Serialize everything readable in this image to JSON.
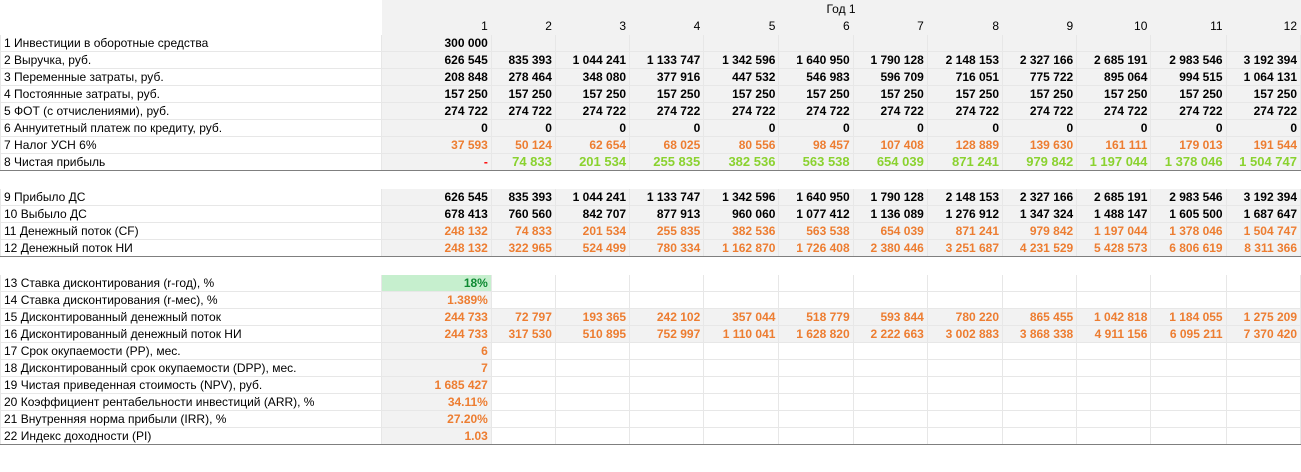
{
  "header": {
    "year_label": "Год 1",
    "months": [
      "1",
      "2",
      "3",
      "4",
      "5",
      "6",
      "7",
      "8",
      "9",
      "10",
      "11",
      "12"
    ]
  },
  "rows": [
    {
      "n": "1",
      "label": "Инвестиции в оборотные средства",
      "values": [
        "300 000",
        "",
        "",
        "",
        "",
        "",
        "",
        "",
        "",
        "",
        "",
        ""
      ],
      "style": "bold"
    },
    {
      "n": "2",
      "label": "Выручка, руб.",
      "values": [
        "626 545",
        "835 393",
        "1 044 241",
        "1 133 747",
        "1 342 596",
        "1 640 950",
        "1 790 128",
        "2 148 153",
        "2 327 166",
        "2 685 191",
        "2 983 546",
        "3 192 394"
      ],
      "style": "bold"
    },
    {
      "n": "3",
      "label": "Переменные затраты, руб.",
      "values": [
        "208 848",
        "278 464",
        "348 080",
        "377 916",
        "447 532",
        "546 983",
        "596 709",
        "716 051",
        "775 722",
        "895 064",
        "994 515",
        "1 064 131"
      ],
      "style": "bold"
    },
    {
      "n": "4",
      "label": "Постоянные затраты, руб.",
      "values": [
        "157 250",
        "157 250",
        "157 250",
        "157 250",
        "157 250",
        "157 250",
        "157 250",
        "157 250",
        "157 250",
        "157 250",
        "157 250",
        "157 250"
      ],
      "style": "bold"
    },
    {
      "n": "5",
      "label": "ФОТ (с отчислениями), руб.",
      "values": [
        "274 722",
        "274 722",
        "274 722",
        "274 722",
        "274 722",
        "274 722",
        "274 722",
        "274 722",
        "274 722",
        "274 722",
        "274 722",
        "274 722"
      ],
      "style": "bold"
    },
    {
      "n": "6",
      "label": "Аннуитетный платеж по кредиту, руб.",
      "values": [
        "0",
        "0",
        "0",
        "0",
        "0",
        "0",
        "0",
        "0",
        "0",
        "0",
        "0",
        "0"
      ],
      "style": "bold"
    },
    {
      "n": "7",
      "label": "Налог УСН 6%",
      "values": [
        "37 593",
        "50 124",
        "62 654",
        "68 025",
        "80 556",
        "98 457",
        "107 408",
        "128 889",
        "139 630",
        "161 111",
        "179 013",
        "191 544"
      ],
      "style": "orange"
    },
    {
      "n": "8",
      "label": "Чистая прибыль",
      "values": [
        "-",
        "74 833",
        "201 534",
        "255 835",
        "382 536",
        "563 538",
        "654 039",
        "871 241",
        "979 842",
        "1 197 044",
        "1 378 046",
        "1 504 747"
      ],
      "style": "green",
      "first_style": "red"
    },
    {
      "n": "9",
      "label": "Прибыло ДС",
      "values": [
        "626 545",
        "835 393",
        "1 044 241",
        "1 133 747",
        "1 342 596",
        "1 640 950",
        "1 790 128",
        "2 148 153",
        "2 327 166",
        "2 685 191",
        "2 983 546",
        "3 192 394"
      ],
      "style": "bold"
    },
    {
      "n": "10",
      "label": "Выбыло ДС",
      "values": [
        "678 413",
        "760 560",
        "842 707",
        "877 913",
        "960 060",
        "1 077 412",
        "1 136 089",
        "1 276 912",
        "1 347 324",
        "1 488 147",
        "1 605 500",
        "1 687 647"
      ],
      "style": "bold"
    },
    {
      "n": "11",
      "label": "Денежный поток (CF)",
      "values": [
        "248 132",
        "74 833",
        "201 534",
        "255 835",
        "382 536",
        "563 538",
        "654 039",
        "871 241",
        "979 842",
        "1 197 044",
        "1 378 046",
        "1 504 747"
      ],
      "style": "orange"
    },
    {
      "n": "12",
      "label": "Денежный поток НИ",
      "values": [
        "248 132",
        "322 965",
        "524 499",
        "780 334",
        "1 162 870",
        "1 726 408",
        "2 380 446",
        "3 251 687",
        "4 231 529",
        "5 428 573",
        "6 806 619",
        "8 311 366"
      ],
      "style": "orange"
    },
    {
      "n": "13",
      "label": "Ставка дисконтирования (r-год), %",
      "values": [
        "18%",
        "",
        "",
        "",
        "",
        "",
        "",
        "",
        "",
        "",
        "",
        ""
      ],
      "style": "dgreen"
    },
    {
      "n": "14",
      "label": "Ставка дисконтирования (r-мес), %",
      "values": [
        "1.389%",
        "",
        "",
        "",
        "",
        "",
        "",
        "",
        "",
        "",
        "",
        ""
      ],
      "style": "orange"
    },
    {
      "n": "15",
      "label": "Дисконтированный денежный поток",
      "values": [
        "244 733",
        "72 797",
        "193 365",
        "242 102",
        "357 044",
        "518 779",
        "593 844",
        "780 220",
        "865 455",
        "1 042 818",
        "1 184 055",
        "1 275 209"
      ],
      "style": "orange"
    },
    {
      "n": "16",
      "label": "Дисконтированный денежный поток НИ",
      "values": [
        "244 733",
        "317 530",
        "510 895",
        "752 997",
        "1 110 041",
        "1 628 820",
        "2 222 663",
        "3 002 883",
        "3 868 338",
        "4 911 156",
        "6 095 211",
        "7 370 420"
      ],
      "style": "orange"
    },
    {
      "n": "17",
      "label": "Срок окупаемости (PP), мес.",
      "values": [
        "6",
        "",
        "",
        "",
        "",
        "",
        "",
        "",
        "",
        "",
        "",
        ""
      ],
      "style": "orange"
    },
    {
      "n": "18",
      "label": "Дисконтированный срок окупаемости (DPP), мес.",
      "values": [
        "7",
        "",
        "",
        "",
        "",
        "",
        "",
        "",
        "",
        "",
        "",
        ""
      ],
      "style": "orange"
    },
    {
      "n": "19",
      "label": "Чистая приведенная стоимость (NPV), руб.",
      "values": [
        "1 685 427",
        "",
        "",
        "",
        "",
        "",
        "",
        "",
        "",
        "",
        "",
        ""
      ],
      "style": "orange"
    },
    {
      "n": "20",
      "label": "Коэффициент рентабельности инвестиций (ARR), %",
      "values": [
        "34.11%",
        "",
        "",
        "",
        "",
        "",
        "",
        "",
        "",
        "",
        "",
        ""
      ],
      "style": "orange"
    },
    {
      "n": "21",
      "label": "Внутренняя норма прибыли (IRR), %",
      "values": [
        "27.20%",
        "",
        "",
        "",
        "",
        "",
        "",
        "",
        "",
        "",
        "",
        ""
      ],
      "style": "orange"
    },
    {
      "n": "22",
      "label": "Индекс доходности (PI)",
      "values": [
        "1.03",
        "",
        "",
        "",
        "",
        "",
        "",
        "",
        "",
        "",
        "",
        ""
      ],
      "style": "orange"
    }
  ]
}
